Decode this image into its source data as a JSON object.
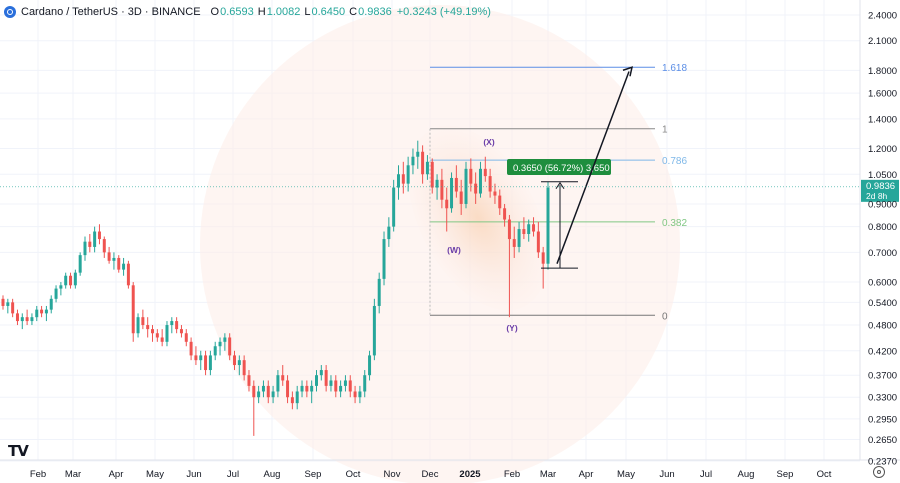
{
  "header": {
    "symbol": "Cardano / TetherUS · 3D · BINANCE",
    "o_label": "O",
    "o_value": "0.6593",
    "h_label": "H",
    "h_value": "1.0082",
    "l_label": "L",
    "l_value": "0.6450",
    "c_label": "C",
    "c_value": "0.9836",
    "change": "+0.3243 (+49.19%)"
  },
  "colors": {
    "up": "#26a69a",
    "down": "#ef5350",
    "accent_blue": "#5b8ee6",
    "fib_green": "#81c784",
    "grid": "#f0f3fa",
    "badge": "#1e8e3e",
    "wave_label": "#6a3da8",
    "price_tag": "#26a69a"
  },
  "chart_data": {
    "type": "candlestick",
    "scale": "log",
    "price_axis_ticks": [
      "2.4000",
      "2.1000",
      "1.8000",
      "1.6000",
      "1.4000",
      "1.2000",
      "1.0500",
      "0.9000",
      "0.8000",
      "0.7000",
      "0.6000",
      "0.5400",
      "0.4800",
      "0.4200",
      "0.3700",
      "0.3300",
      "0.2950",
      "0.2650",
      "0.2370"
    ],
    "time_axis_ticks": [
      "Feb",
      "Mar",
      "Apr",
      "May",
      "Jun",
      "Jul",
      "Aug",
      "Sep",
      "Oct",
      "Nov",
      "Dec",
      "2025",
      "Feb",
      "Mar",
      "Apr",
      "May",
      "Jun",
      "Jul",
      "Aug",
      "Sep",
      "Oct"
    ],
    "last_price": "0.9836",
    "last_price_countdown": "2d 8h",
    "fib_levels": [
      {
        "label": "1.618",
        "price": 1.83
      },
      {
        "label": "1",
        "price": 1.33
      },
      {
        "label": "0.786",
        "price": 1.13
      },
      {
        "label": "0.382",
        "price": 0.82
      },
      {
        "label": "0",
        "price": 0.505
      }
    ],
    "measure_badge": "0.3650 (56.72%) 3,650",
    "wave_labels": [
      "(X)",
      "(W)",
      "(Y)"
    ],
    "candles": [
      [
        0.55,
        0.56,
        0.52,
        0.53
      ],
      [
        0.53,
        0.55,
        0.51,
        0.54
      ],
      [
        0.54,
        0.55,
        0.5,
        0.51
      ],
      [
        0.51,
        0.52,
        0.48,
        0.49
      ],
      [
        0.49,
        0.51,
        0.47,
        0.5
      ],
      [
        0.5,
        0.52,
        0.48,
        0.49
      ],
      [
        0.49,
        0.51,
        0.48,
        0.5
      ],
      [
        0.5,
        0.53,
        0.49,
        0.52
      ],
      [
        0.52,
        0.53,
        0.5,
        0.51
      ],
      [
        0.51,
        0.53,
        0.49,
        0.52
      ],
      [
        0.52,
        0.56,
        0.51,
        0.55
      ],
      [
        0.55,
        0.59,
        0.54,
        0.58
      ],
      [
        0.58,
        0.6,
        0.56,
        0.59
      ],
      [
        0.59,
        0.63,
        0.58,
        0.62
      ],
      [
        0.62,
        0.63,
        0.58,
        0.59
      ],
      [
        0.59,
        0.64,
        0.58,
        0.63
      ],
      [
        0.63,
        0.7,
        0.62,
        0.69
      ],
      [
        0.69,
        0.76,
        0.67,
        0.74
      ],
      [
        0.74,
        0.77,
        0.7,
        0.72
      ],
      [
        0.72,
        0.8,
        0.7,
        0.78
      ],
      [
        0.78,
        0.81,
        0.73,
        0.75
      ],
      [
        0.75,
        0.76,
        0.68,
        0.7
      ],
      [
        0.7,
        0.72,
        0.66,
        0.67
      ],
      [
        0.67,
        0.7,
        0.64,
        0.68
      ],
      [
        0.68,
        0.69,
        0.63,
        0.64
      ],
      [
        0.64,
        0.68,
        0.62,
        0.66
      ],
      [
        0.66,
        0.67,
        0.58,
        0.59
      ],
      [
        0.59,
        0.6,
        0.44,
        0.46
      ],
      [
        0.46,
        0.51,
        0.45,
        0.5
      ],
      [
        0.5,
        0.52,
        0.47,
        0.48
      ],
      [
        0.48,
        0.5,
        0.45,
        0.47
      ],
      [
        0.47,
        0.48,
        0.44,
        0.46
      ],
      [
        0.46,
        0.47,
        0.44,
        0.45
      ],
      [
        0.45,
        0.47,
        0.43,
        0.44
      ],
      [
        0.44,
        0.49,
        0.43,
        0.48
      ],
      [
        0.48,
        0.5,
        0.46,
        0.49
      ],
      [
        0.49,
        0.5,
        0.46,
        0.47
      ],
      [
        0.47,
        0.48,
        0.45,
        0.46
      ],
      [
        0.46,
        0.47,
        0.43,
        0.44
      ],
      [
        0.44,
        0.45,
        0.4,
        0.41
      ],
      [
        0.41,
        0.43,
        0.39,
        0.4
      ],
      [
        0.4,
        0.42,
        0.38,
        0.41
      ],
      [
        0.41,
        0.42,
        0.37,
        0.38
      ],
      [
        0.38,
        0.42,
        0.37,
        0.41
      ],
      [
        0.41,
        0.44,
        0.4,
        0.43
      ],
      [
        0.43,
        0.45,
        0.41,
        0.44
      ],
      [
        0.44,
        0.46,
        0.42,
        0.45
      ],
      [
        0.45,
        0.46,
        0.4,
        0.41
      ],
      [
        0.41,
        0.42,
        0.38,
        0.39
      ],
      [
        0.39,
        0.41,
        0.37,
        0.4
      ],
      [
        0.4,
        0.41,
        0.36,
        0.37
      ],
      [
        0.37,
        0.38,
        0.34,
        0.35
      ],
      [
        0.35,
        0.36,
        0.27,
        0.33
      ],
      [
        0.33,
        0.35,
        0.32,
        0.34
      ],
      [
        0.34,
        0.36,
        0.33,
        0.35
      ],
      [
        0.35,
        0.36,
        0.32,
        0.33
      ],
      [
        0.33,
        0.35,
        0.32,
        0.34
      ],
      [
        0.34,
        0.38,
        0.33,
        0.37
      ],
      [
        0.37,
        0.39,
        0.35,
        0.36
      ],
      [
        0.36,
        0.37,
        0.32,
        0.33
      ],
      [
        0.33,
        0.34,
        0.31,
        0.32
      ],
      [
        0.32,
        0.35,
        0.31,
        0.34
      ],
      [
        0.34,
        0.36,
        0.33,
        0.35
      ],
      [
        0.35,
        0.36,
        0.33,
        0.34
      ],
      [
        0.34,
        0.36,
        0.32,
        0.35
      ],
      [
        0.35,
        0.38,
        0.34,
        0.37
      ],
      [
        0.37,
        0.39,
        0.36,
        0.38
      ],
      [
        0.38,
        0.39,
        0.34,
        0.35
      ],
      [
        0.35,
        0.37,
        0.34,
        0.36
      ],
      [
        0.36,
        0.37,
        0.33,
        0.34
      ],
      [
        0.34,
        0.36,
        0.33,
        0.35
      ],
      [
        0.35,
        0.37,
        0.34,
        0.36
      ],
      [
        0.36,
        0.37,
        0.33,
        0.34
      ],
      [
        0.34,
        0.35,
        0.32,
        0.33
      ],
      [
        0.33,
        0.35,
        0.32,
        0.34
      ],
      [
        0.34,
        0.38,
        0.33,
        0.37
      ],
      [
        0.37,
        0.42,
        0.36,
        0.41
      ],
      [
        0.41,
        0.55,
        0.4,
        0.53
      ],
      [
        0.53,
        0.63,
        0.51,
        0.61
      ],
      [
        0.61,
        0.78,
        0.59,
        0.75
      ],
      [
        0.75,
        0.84,
        0.72,
        0.8
      ],
      [
        0.8,
        1.02,
        0.78,
        0.98
      ],
      [
        0.98,
        1.1,
        0.92,
        1.05
      ],
      [
        1.05,
        1.12,
        0.95,
        1.0
      ],
      [
        1.0,
        1.15,
        0.96,
        1.1
      ],
      [
        1.1,
        1.2,
        1.05,
        1.15
      ],
      [
        1.15,
        1.25,
        1.08,
        1.18
      ],
      [
        1.18,
        1.22,
        1.0,
        1.05
      ],
      [
        1.05,
        1.16,
        1.02,
        1.12
      ],
      [
        1.12,
        1.14,
        0.95,
        0.98
      ],
      [
        0.98,
        1.05,
        0.92,
        1.02
      ],
      [
        1.02,
        1.08,
        0.88,
        0.92
      ],
      [
        0.92,
        0.98,
        0.78,
        0.88
      ],
      [
        0.88,
        1.06,
        0.86,
        1.03
      ],
      [
        1.03,
        1.1,
        0.93,
        0.96
      ],
      [
        0.96,
        1.02,
        0.85,
        0.9
      ],
      [
        0.9,
        1.12,
        0.88,
        1.08
      ],
      [
        1.08,
        1.14,
        0.96,
        1.0
      ],
      [
        1.0,
        1.06,
        0.9,
        0.95
      ],
      [
        0.95,
        1.12,
        0.93,
        1.08
      ],
      [
        1.08,
        1.15,
        1.01,
        1.04
      ],
      [
        1.04,
        1.08,
        0.93,
        0.96
      ],
      [
        0.96,
        1.0,
        0.9,
        0.94
      ],
      [
        0.94,
        0.97,
        0.85,
        0.88
      ],
      [
        0.88,
        0.9,
        0.8,
        0.83
      ],
      [
        0.83,
        0.85,
        0.5,
        0.75
      ],
      [
        0.75,
        0.8,
        0.68,
        0.72
      ],
      [
        0.72,
        0.82,
        0.7,
        0.79
      ],
      [
        0.79,
        0.84,
        0.75,
        0.77
      ],
      [
        0.77,
        0.83,
        0.74,
        0.81
      ],
      [
        0.81,
        0.84,
        0.76,
        0.78
      ],
      [
        0.78,
        0.82,
        0.68,
        0.7
      ],
      [
        0.7,
        0.72,
        0.58,
        0.66
      ],
      [
        0.66,
        1.01,
        0.64,
        0.98
      ]
    ]
  }
}
